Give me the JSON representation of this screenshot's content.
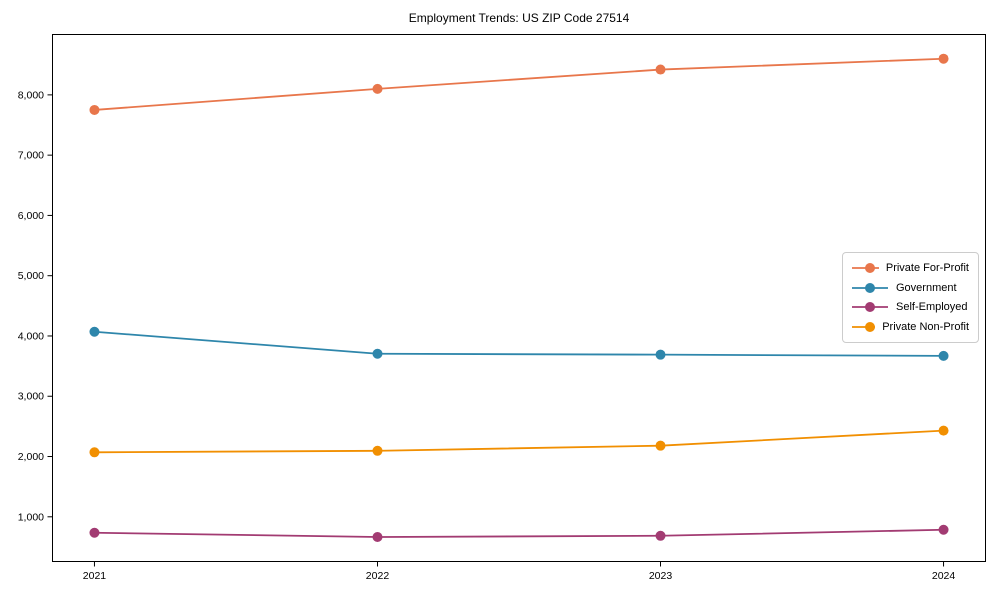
{
  "page": {
    "background": "#ffffff",
    "axis_color": "#000000"
  },
  "chart_data": {
    "type": "line",
    "title": "Employment Trends: US ZIP Code 27514",
    "x": [
      2021,
      2022,
      2023,
      2024
    ],
    "x_tick_labels": [
      "2021",
      "2022",
      "2023",
      "2024"
    ],
    "y_tick_values": [
      1000,
      2000,
      3000,
      4000,
      5000,
      6000,
      7000,
      8000
    ],
    "y_tick_labels": [
      "1,000",
      "2,000",
      "3,000",
      "4,000",
      "5,000",
      "6,000",
      "7,000",
      "8,000"
    ],
    "xlim": [
      2020.85,
      2024.15
    ],
    "ylim": [
      250,
      9010
    ],
    "grid": false,
    "legend_position": "center-right",
    "marker": "circle",
    "series": [
      {
        "name": "Private For-Profit",
        "color": "#E8764B",
        "values": [
          7750,
          8100,
          8420,
          8600
        ]
      },
      {
        "name": "Government",
        "color": "#2E86AB",
        "values": [
          4070,
          3705,
          3690,
          3670
        ]
      },
      {
        "name": "Self-Employed",
        "color": "#A23B72",
        "values": [
          735,
          665,
          685,
          785
        ]
      },
      {
        "name": "Private Non-Profit",
        "color": "#F18F01",
        "values": [
          2070,
          2095,
          2180,
          2430
        ]
      }
    ]
  }
}
